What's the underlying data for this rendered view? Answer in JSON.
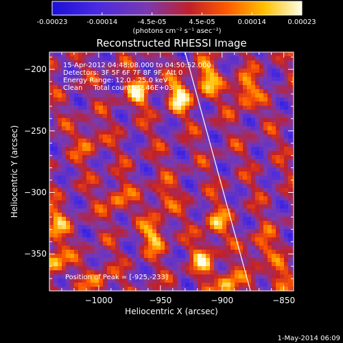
{
  "colorbar": {
    "ticks": [
      "-0.00023",
      "-0.00014",
      "-4.5e-05",
      "4.5e-05",
      "0.00014",
      "0.00023"
    ],
    "range": [
      -0.00023,
      0.00023
    ],
    "unit_label": "(photons cm⁻² s⁻¹ asec⁻²)",
    "colors": [
      "#1a10d8",
      "#6a38d8",
      "#b23a8c",
      "#e81010",
      "#ff7a00",
      "#ffd000",
      "#ffffe0"
    ]
  },
  "chart_data": {
    "type": "heatmap",
    "title": "Reconstructed RHESSI Image",
    "xlabel": "Heliocentric X (arcsec)",
    "ylabel": "Heliocentric Y (arcsec)",
    "xlim": [
      -1040,
      -842
    ],
    "ylim": [
      -380,
      -186
    ],
    "xticks": [
      -1000,
      -950,
      -900,
      -850
    ],
    "yticks": [
      -200,
      -250,
      -300,
      -350
    ],
    "xtick_labels": [
      "−1000",
      "−950",
      "−900",
      "−850"
    ],
    "ytick_labels": [
      "−200",
      "−250",
      "−300",
      "−350"
    ],
    "limb_line": [
      [
        -930,
        -186
      ],
      [
        -877,
        -380
      ]
    ],
    "bright_regions": [
      {
        "x": -968,
        "y": -218,
        "level": 0.0002
      },
      {
        "x": -935,
        "y": -222,
        "level": 0.00023
      },
      {
        "x": -912,
        "y": -208,
        "level": 0.0002
      },
      {
        "x": -882,
        "y": -218,
        "level": 0.0002
      },
      {
        "x": -1008,
        "y": -258,
        "level": 0.00012
      },
      {
        "x": -1035,
        "y": -325,
        "level": 0.00016
      },
      {
        "x": -1035,
        "y": -355,
        "level": 0.0002
      },
      {
        "x": -985,
        "y": -305,
        "level": 0.00014
      },
      {
        "x": -948,
        "y": -305,
        "level": 0.00012
      },
      {
        "x": -955,
        "y": -335,
        "level": 0.00018
      },
      {
        "x": -905,
        "y": -325,
        "level": 0.00016
      },
      {
        "x": -915,
        "y": -355,
        "level": 0.00018
      },
      {
        "x": -868,
        "y": -345,
        "level": 0.00014
      },
      {
        "x": -895,
        "y": -375,
        "level": 0.0002
      },
      {
        "x": -1000,
        "y": -372,
        "level": 0.00012
      },
      {
        "x": -855,
        "y": -370,
        "level": 0.00012
      }
    ],
    "annotations": [
      "15-Apr-2012 04:48:08.000 to 04:50:52.000",
      "Detectors: 3F 5F 6F 7F 8F 9F, Att 0",
      "Energy Range: 12.0 - 25.0 keV",
      "Clean     Total counts: 2.46E+03",
      "Position of Peak = [-925,-233]"
    ]
  },
  "footer": {
    "date": "1-May-2014 06:09"
  }
}
